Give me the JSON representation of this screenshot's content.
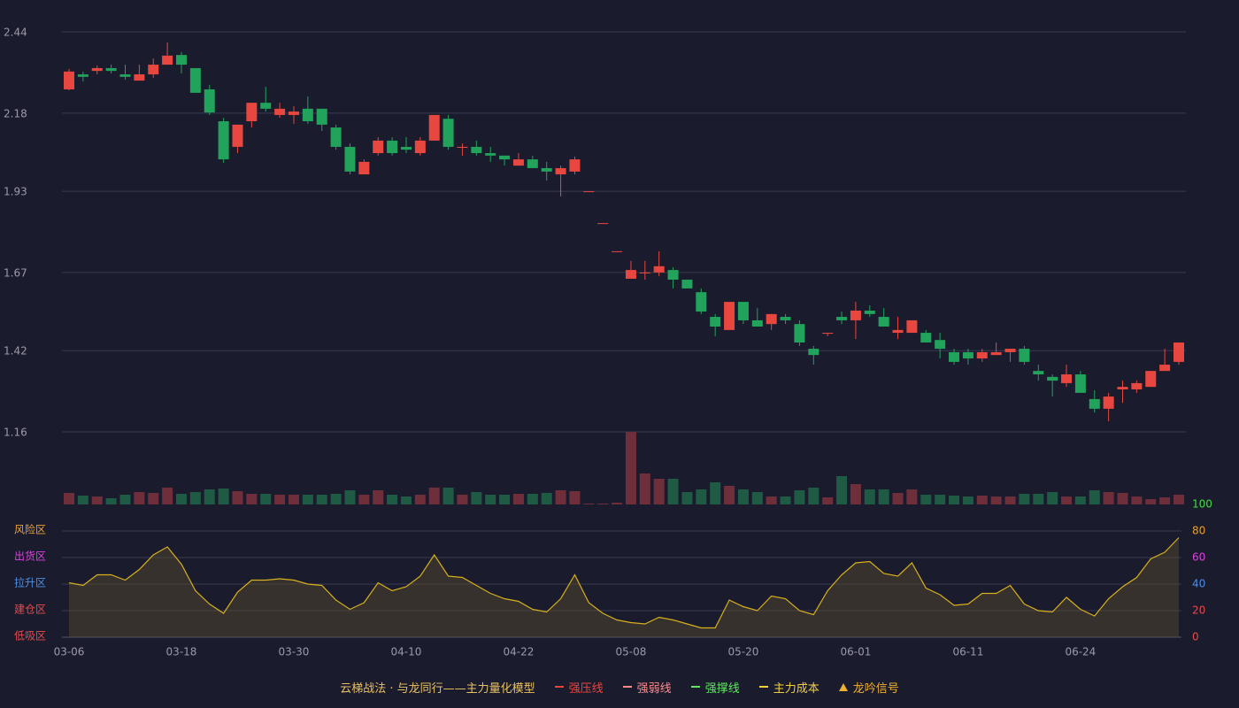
{
  "chart_data": [
    {
      "type": "candlestick",
      "categories": [
        "03-06",
        null,
        null,
        null,
        null,
        null,
        null,
        null,
        "03-18",
        null,
        null,
        null,
        null,
        null,
        null,
        null,
        "03-30",
        null,
        null,
        null,
        null,
        null,
        null,
        null,
        "04-10",
        null,
        null,
        null,
        null,
        null,
        null,
        null,
        "04-22",
        null,
        null,
        null,
        null,
        null,
        null,
        null,
        "05-08",
        null,
        null,
        null,
        null,
        null,
        null,
        null,
        "05-20",
        null,
        null,
        null,
        null,
        null,
        null,
        null,
        "06-01",
        null,
        null,
        null,
        null,
        null,
        null,
        null,
        "06-11",
        null,
        null,
        null,
        null,
        null,
        null,
        null,
        "06-24",
        null,
        null,
        null,
        null,
        null,
        null,
        null
      ],
      "open": [
        2.256,
        2.304,
        2.315,
        2.324,
        2.304,
        2.284,
        2.304,
        2.335,
        2.366,
        2.324,
        2.256,
        2.154,
        2.072,
        2.154,
        2.213,
        2.174,
        2.174,
        2.194,
        2.194,
        2.134,
        2.072,
        1.984,
        2.052,
        2.092,
        2.072,
        2.052,
        2.092,
        2.162,
        2.069,
        2.072,
        2.052,
        2.044,
        2.012,
        2.032,
        2.004,
        1.984,
        1.993,
        1.93,
        1.828,
        1.738,
        1.65,
        1.667,
        1.67,
        1.678,
        1.647,
        1.607,
        1.528,
        1.486,
        1.576,
        1.517,
        1.505,
        1.528,
        1.505,
        1.426,
        1.474,
        1.528,
        1.517,
        1.548,
        1.528,
        1.477,
        1.477,
        1.477,
        1.454,
        1.415,
        1.415,
        1.395,
        1.406,
        1.415,
        1.426,
        1.355,
        1.336,
        1.316,
        1.344,
        1.265,
        1.234,
        1.296,
        1.296,
        1.304,
        1.355,
        1.384
      ],
      "high": [
        2.321,
        2.313,
        2.332,
        2.335,
        2.335,
        2.335,
        2.355,
        2.406,
        2.375,
        2.324,
        2.27,
        2.165,
        2.143,
        2.213,
        2.264,
        2.213,
        2.202,
        2.233,
        2.194,
        2.143,
        2.083,
        2.032,
        2.103,
        2.103,
        2.103,
        2.103,
        2.174,
        2.174,
        2.083,
        2.092,
        2.072,
        2.044,
        2.052,
        2.044,
        2.024,
        2.012,
        2.041,
        1.93,
        1.828,
        1.738,
        1.707,
        1.707,
        1.738,
        1.687,
        1.647,
        1.619,
        1.537,
        1.576,
        1.576,
        1.556,
        1.537,
        1.537,
        1.517,
        1.435,
        1.477,
        1.545,
        1.576,
        1.565,
        1.556,
        1.528,
        1.517,
        1.486,
        1.477,
        1.426,
        1.426,
        1.426,
        1.446,
        1.426,
        1.435,
        1.375,
        1.344,
        1.375,
        1.355,
        1.293,
        1.285,
        1.324,
        1.324,
        1.355,
        1.426,
        1.446
      ],
      "low": [
        2.253,
        2.281,
        2.304,
        2.307,
        2.287,
        2.284,
        2.293,
        2.335,
        2.307,
        2.245,
        2.174,
        2.021,
        2.052,
        2.134,
        2.185,
        2.165,
        2.146,
        2.146,
        2.123,
        2.063,
        1.984,
        1.984,
        2.044,
        2.044,
        2.052,
        2.044,
        2.092,
        2.063,
        2.044,
        2.044,
        2.024,
        2.012,
        2.012,
        2.004,
        1.964,
        1.913,
        1.984,
        1.93,
        1.828,
        1.738,
        1.65,
        1.647,
        1.658,
        1.619,
        1.619,
        1.537,
        1.466,
        1.486,
        1.505,
        1.497,
        1.486,
        1.505,
        1.435,
        1.375,
        1.466,
        1.505,
        1.457,
        1.528,
        1.497,
        1.457,
        1.477,
        1.446,
        1.395,
        1.375,
        1.375,
        1.384,
        1.406,
        1.384,
        1.375,
        1.324,
        1.273,
        1.304,
        1.285,
        1.222,
        1.194,
        1.253,
        1.285,
        1.304,
        1.355,
        1.375
      ],
      "close": [
        2.313,
        2.296,
        2.324,
        2.315,
        2.296,
        2.304,
        2.335,
        2.364,
        2.335,
        2.245,
        2.182,
        2.032,
        2.143,
        2.213,
        2.194,
        2.194,
        2.185,
        2.154,
        2.143,
        2.072,
        1.993,
        2.024,
        2.092,
        2.052,
        2.063,
        2.092,
        2.174,
        2.072,
        2.072,
        2.052,
        2.044,
        2.032,
        2.032,
        2.004,
        1.993,
        2.004,
        2.032,
        1.93,
        1.828,
        1.738,
        1.678,
        1.67,
        1.69,
        1.647,
        1.619,
        1.545,
        1.497,
        1.576,
        1.517,
        1.497,
        1.537,
        1.517,
        1.446,
        1.406,
        1.477,
        1.517,
        1.548,
        1.537,
        1.497,
        1.486,
        1.517,
        1.446,
        1.426,
        1.384,
        1.395,
        1.415,
        1.415,
        1.426,
        1.384,
        1.344,
        1.324,
        1.344,
        1.285,
        1.234,
        1.273,
        1.304,
        1.316,
        1.355,
        1.375,
        1.446
      ],
      "volume": [
        13,
        10,
        9,
        7,
        11,
        14,
        13,
        19,
        12,
        14,
        17,
        18,
        15,
        12,
        12,
        11,
        11,
        11,
        11,
        12,
        16,
        11,
        16,
        11,
        9,
        11,
        19,
        19,
        11,
        14,
        11,
        11,
        12,
        12,
        13,
        16,
        15,
        1,
        1,
        2,
        82,
        35,
        29,
        29,
        14,
        17,
        25,
        21,
        17,
        14,
        9,
        9,
        16,
        19,
        8,
        32,
        23,
        17,
        17,
        13,
        17,
        11,
        11,
        10,
        9,
        10,
        9,
        9,
        12,
        12,
        14,
        9,
        9,
        16,
        14,
        13,
        9,
        6,
        8,
        11
      ],
      "up_color": "#e8473f",
      "down_color": "#21a35b",
      "volume_up_color": "#6e2f3b",
      "volume_down_color": "#1f5a45",
      "ylim": [
        1.16,
        2.44
      ],
      "yticks": [
        1.16,
        1.42,
        1.67,
        1.93,
        2.18,
        2.44
      ],
      "grid": true
    },
    {
      "type": "line",
      "title": "云梯战法 · 与龙同行——主力量化模型",
      "values": [
        41,
        39,
        47,
        47,
        43,
        51,
        62,
        68,
        55,
        35,
        25,
        18,
        34,
        43,
        43,
        44,
        43,
        40,
        39,
        28,
        21,
        26,
        41,
        35,
        38,
        46,
        62,
        46,
        45,
        39,
        33,
        29,
        27,
        21,
        19,
        29,
        47,
        26,
        18,
        13,
        11,
        10,
        15,
        13,
        10,
        7,
        7,
        28,
        23,
        20,
        31,
        29,
        20,
        17,
        35,
        47,
        56,
        57,
        48,
        46,
        56,
        37,
        32,
        24,
        25,
        33,
        33,
        39,
        25,
        20,
        19,
        30,
        21,
        16,
        29,
        38,
        45,
        59,
        64,
        75
      ],
      "color": "#d6b01c",
      "fill": "rgba(90,78,45,0.45)",
      "ylim": [
        0,
        100
      ],
      "yticks": [
        0,
        20,
        40,
        60,
        80,
        100
      ],
      "ytick_colors": [
        "#e84a4a",
        "#e84a4a",
        "#4a8fe8",
        "#e040e0",
        "#e8a030",
        "#3fe03f"
      ],
      "zones": [
        {
          "label": "低吸区",
          "value": 0,
          "color": "#e84a4a"
        },
        {
          "label": "建仓区",
          "value": 20,
          "color": "#e84a4a"
        },
        {
          "label": "拉升区",
          "value": 40,
          "color": "#4a8fe8"
        },
        {
          "label": "出货区",
          "value": 60,
          "color": "#e040e0"
        },
        {
          "label": "风险区",
          "value": 80,
          "color": "#e8a030"
        }
      ],
      "legend": [
        {
          "name": "强压线",
          "color": "#e8473f",
          "style": "solid"
        },
        {
          "name": "强弱线",
          "color": "#ff8a8a",
          "style": "dashed"
        },
        {
          "name": "强撑线",
          "color": "#5fe85f",
          "style": "solid"
        },
        {
          "name": "主力成本",
          "color": "#f0d040",
          "style": "dashed"
        },
        {
          "name": "龙吟信号",
          "color": "#f0b030",
          "style": "triangle"
        }
      ],
      "grid": true
    }
  ]
}
